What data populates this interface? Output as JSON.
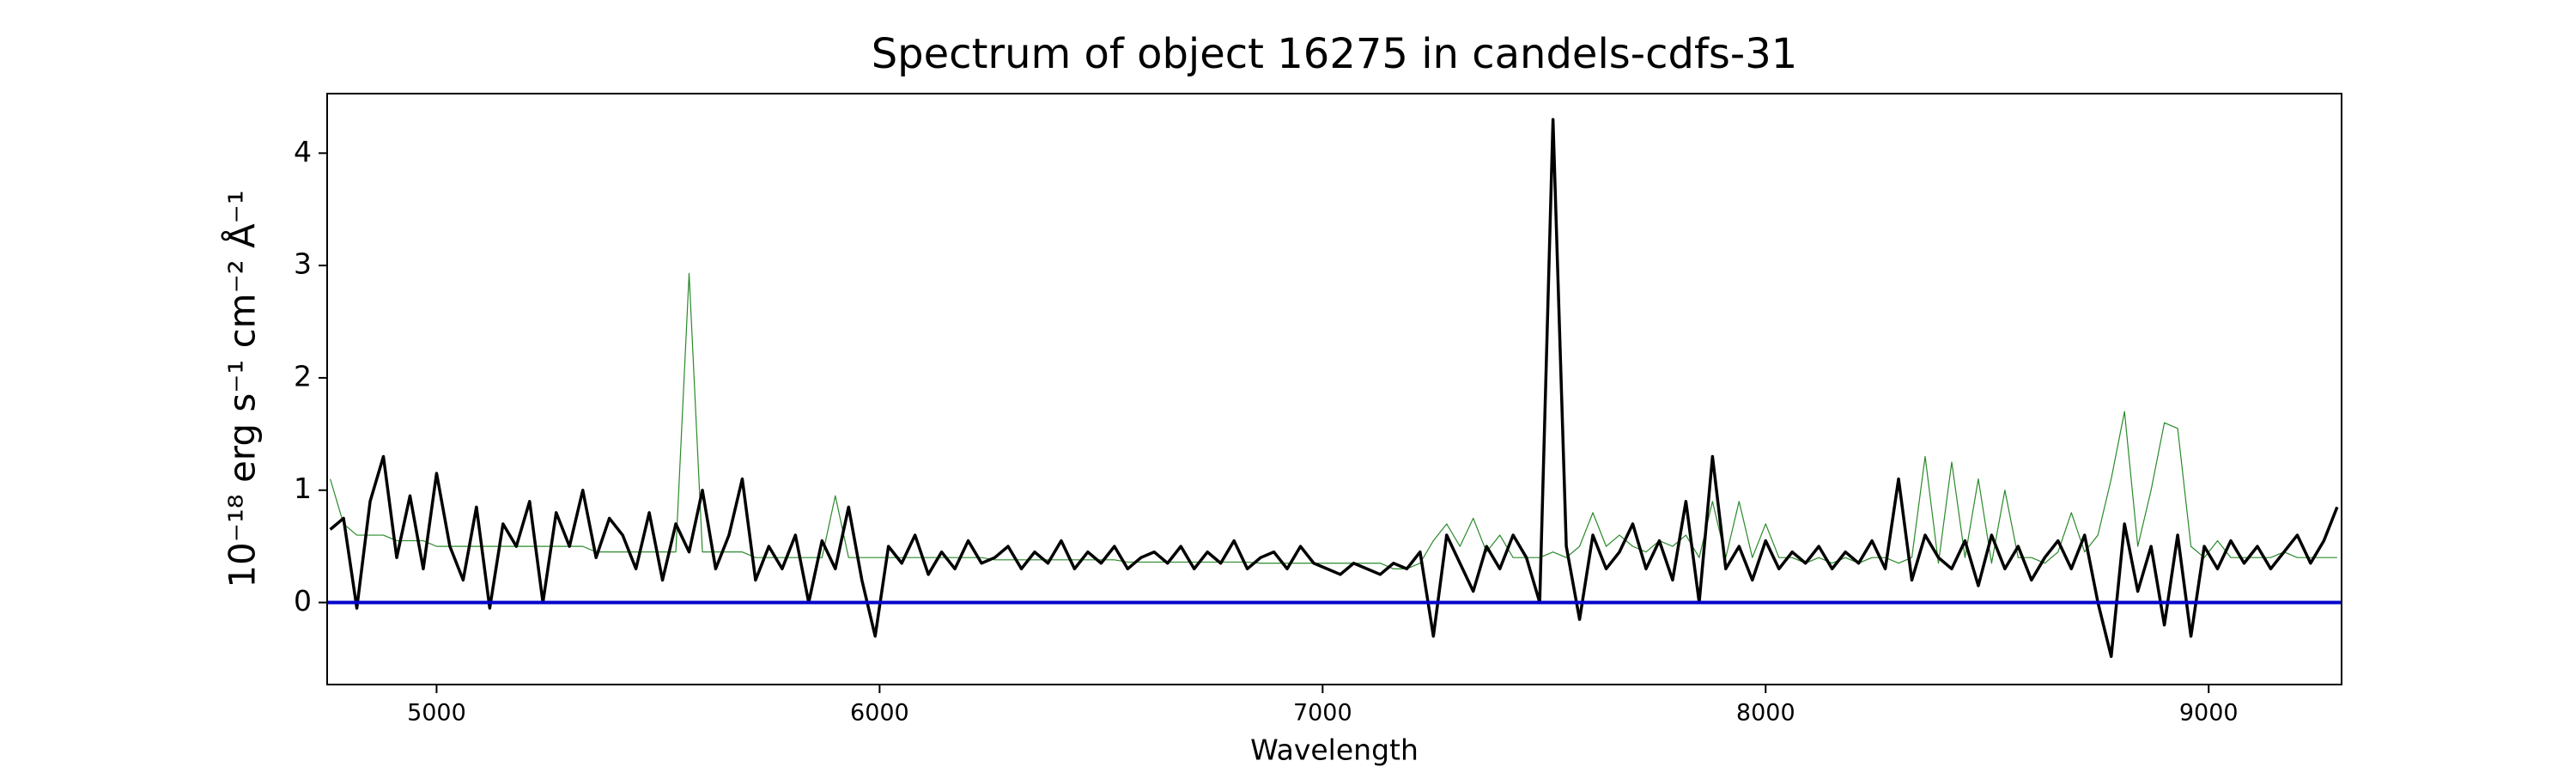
{
  "chart_data": {
    "type": "line",
    "title": "Spectrum of object 16275 in candels-cdfs-31",
    "xlabel": "Wavelength",
    "ylabel": "10⁻¹⁸ erg s⁻¹ cm⁻² Å⁻¹",
    "xlim": [
      4753,
      9300
    ],
    "xticks": [
      5000,
      6000,
      7000,
      8000,
      9000
    ],
    "ylim": [
      -0.73,
      4.53
    ],
    "yticks": [
      0,
      1,
      2,
      3,
      4
    ],
    "hline": {
      "value": 0,
      "color": "#0000cc"
    },
    "x": [
      4760,
      4790,
      4820,
      4850,
      4880,
      4910,
      4940,
      4970,
      5000,
      5030,
      5060,
      5090,
      5120,
      5150,
      5180,
      5210,
      5240,
      5270,
      5300,
      5330,
      5360,
      5390,
      5420,
      5450,
      5480,
      5510,
      5540,
      5570,
      5600,
      5630,
      5660,
      5690,
      5720,
      5750,
      5780,
      5810,
      5840,
      5870,
      5900,
      5930,
      5960,
      5990,
      6020,
      6050,
      6080,
      6110,
      6140,
      6170,
      6200,
      6230,
      6260,
      6290,
      6320,
      6350,
      6380,
      6410,
      6440,
      6470,
      6500,
      6530,
      6560,
      6590,
      6620,
      6650,
      6680,
      6710,
      6740,
      6770,
      6800,
      6830,
      6860,
      6890,
      6920,
      6950,
      6980,
      7010,
      7040,
      7070,
      7100,
      7130,
      7160,
      7190,
      7220,
      7250,
      7280,
      7310,
      7340,
      7370,
      7400,
      7430,
      7460,
      7490,
      7520,
      7550,
      7580,
      7610,
      7640,
      7670,
      7700,
      7730,
      7760,
      7790,
      7820,
      7850,
      7880,
      7910,
      7940,
      7970,
      8000,
      8030,
      8060,
      8090,
      8120,
      8150,
      8180,
      8210,
      8240,
      8270,
      8300,
      8330,
      8360,
      8390,
      8420,
      8450,
      8480,
      8510,
      8540,
      8570,
      8600,
      8630,
      8660,
      8690,
      8720,
      8750,
      8780,
      8810,
      8840,
      8870,
      8900,
      8930,
      8960,
      8990,
      9020,
      9050,
      9080,
      9110,
      9140,
      9170,
      9200,
      9230,
      9260,
      9290
    ],
    "series": [
      {
        "color": "#2a8a2a",
        "width": 1.2,
        "values": [
          1.1,
          0.7,
          0.6,
          0.6,
          0.6,
          0.55,
          0.55,
          0.55,
          0.5,
          0.5,
          0.5,
          0.5,
          0.5,
          0.5,
          0.5,
          0.5,
          0.5,
          0.5,
          0.5,
          0.5,
          0.45,
          0.45,
          0.45,
          0.45,
          0.45,
          0.45,
          0.45,
          2.93,
          0.45,
          0.45,
          0.45,
          0.45,
          0.4,
          0.4,
          0.4,
          0.4,
          0.4,
          0.4,
          0.95,
          0.4,
          0.4,
          0.4,
          0.4,
          0.4,
          0.4,
          0.4,
          0.4,
          0.4,
          0.4,
          0.4,
          0.38,
          0.38,
          0.38,
          0.38,
          0.38,
          0.38,
          0.38,
          0.38,
          0.38,
          0.38,
          0.36,
          0.36,
          0.36,
          0.36,
          0.36,
          0.36,
          0.36,
          0.36,
          0.36,
          0.36,
          0.35,
          0.35,
          0.35,
          0.35,
          0.35,
          0.35,
          0.35,
          0.35,
          0.35,
          0.35,
          0.3,
          0.3,
          0.35,
          0.55,
          0.7,
          0.5,
          0.75,
          0.45,
          0.6,
          0.4,
          0.4,
          0.4,
          0.45,
          0.4,
          0.5,
          0.8,
          0.5,
          0.6,
          0.5,
          0.45,
          0.55,
          0.5,
          0.6,
          0.4,
          0.9,
          0.4,
          0.9,
          0.4,
          0.7,
          0.4,
          0.4,
          0.35,
          0.4,
          0.35,
          0.4,
          0.35,
          0.4,
          0.4,
          0.35,
          0.4,
          1.3,
          0.35,
          1.25,
          0.4,
          1.1,
          0.35,
          1.0,
          0.4,
          0.4,
          0.35,
          0.45,
          0.8,
          0.45,
          0.6,
          1.1,
          1.7,
          0.5,
          1.0,
          1.6,
          1.55,
          0.5,
          0.4,
          0.55,
          0.4,
          0.4,
          0.4,
          0.4,
          0.45,
          0.4,
          0.4,
          0.4,
          0.4
        ]
      },
      {
        "color": "#000000",
        "width": 3.5,
        "values": [
          0.65,
          0.75,
          -0.05,
          0.9,
          1.3,
          0.4,
          0.95,
          0.3,
          1.15,
          0.5,
          0.2,
          0.85,
          -0.05,
          0.7,
          0.5,
          0.9,
          0.0,
          0.8,
          0.5,
          1.0,
          0.4,
          0.75,
          0.6,
          0.3,
          0.8,
          0.2,
          0.7,
          0.45,
          1.0,
          0.3,
          0.6,
          1.1,
          0.2,
          0.5,
          0.3,
          0.6,
          0.0,
          0.55,
          0.3,
          0.85,
          0.2,
          -0.3,
          0.5,
          0.35,
          0.6,
          0.25,
          0.45,
          0.3,
          0.55,
          0.35,
          0.4,
          0.5,
          0.3,
          0.45,
          0.35,
          0.55,
          0.3,
          0.45,
          0.35,
          0.5,
          0.3,
          0.4,
          0.45,
          0.35,
          0.5,
          0.3,
          0.45,
          0.35,
          0.55,
          0.3,
          0.4,
          0.45,
          0.3,
          0.5,
          0.35,
          0.3,
          0.25,
          0.35,
          0.3,
          0.25,
          0.35,
          0.3,
          0.45,
          -0.3,
          0.6,
          0.35,
          0.1,
          0.5,
          0.3,
          0.6,
          0.4,
          0.0,
          4.3,
          0.5,
          -0.15,
          0.6,
          0.3,
          0.45,
          0.7,
          0.3,
          0.55,
          0.2,
          0.9,
          0.0,
          1.3,
          0.3,
          0.5,
          0.2,
          0.55,
          0.3,
          0.45,
          0.35,
          0.5,
          0.3,
          0.45,
          0.35,
          0.55,
          0.3,
          1.1,
          0.2,
          0.6,
          0.4,
          0.3,
          0.55,
          0.15,
          0.6,
          0.3,
          0.5,
          0.2,
          0.4,
          0.55,
          0.3,
          0.6,
          0.0,
          -0.48,
          0.7,
          0.1,
          0.5,
          -0.2,
          0.6,
          -0.3,
          0.5,
          0.3,
          0.55,
          0.35,
          0.5,
          0.3,
          0.45,
          0.6,
          0.35,
          0.55,
          0.85
        ]
      }
    ]
  }
}
